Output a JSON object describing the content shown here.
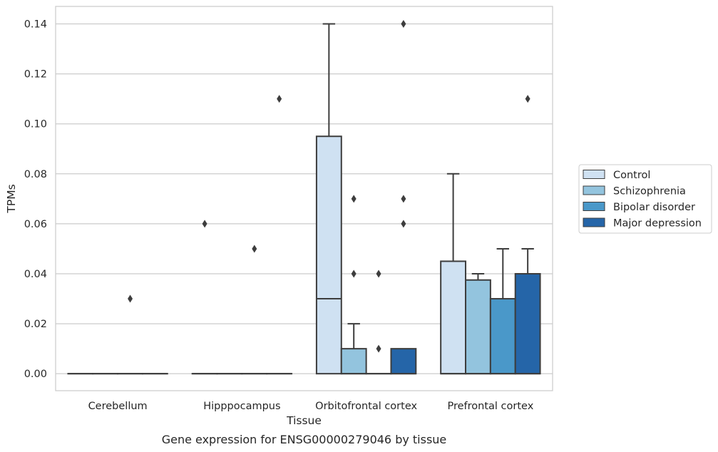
{
  "chart_data": {
    "type": "box",
    "xlabel": "Tissue",
    "ylabel": "TPMs",
    "caption": "Gene expression for ENSG00000279046 by tissue",
    "ylim": [
      -0.0068,
      0.147
    ],
    "yticks": [
      0.0,
      0.02,
      0.04,
      0.06,
      0.08,
      0.1,
      0.12,
      0.14
    ],
    "ytick_labels": [
      "0.00",
      "0.02",
      "0.04",
      "0.06",
      "0.08",
      "0.10",
      "0.12",
      "0.14"
    ],
    "grid": true,
    "legend_position": "right",
    "categories": [
      "Cerebellum",
      "Hipppocampus",
      "Orbitofrontal cortex",
      "Prefrontal cortex"
    ],
    "series": [
      {
        "name": "Control",
        "color": "#cfe1f2",
        "boxes": [
          {
            "q1": 0,
            "median": 0,
            "q3": 0,
            "whisker_low": 0,
            "whisker_high": 0,
            "outliers": []
          },
          {
            "q1": 0,
            "median": 0,
            "q3": 0,
            "whisker_low": 0,
            "whisker_high": 0,
            "outliers": [
              0.06
            ]
          },
          {
            "q1": 0,
            "median": 0.03,
            "q3": 0.095,
            "whisker_low": 0,
            "whisker_high": 0.14,
            "outliers": []
          },
          {
            "q1": 0,
            "median": 0,
            "q3": 0.045,
            "whisker_low": 0,
            "whisker_high": 0.08,
            "outliers": []
          }
        ]
      },
      {
        "name": "Schizophrenia",
        "color": "#93c4de",
        "boxes": [
          {
            "q1": 0,
            "median": 0,
            "q3": 0,
            "whisker_low": 0,
            "whisker_high": 0,
            "outliers": []
          },
          {
            "q1": 0,
            "median": 0,
            "q3": 0,
            "whisker_low": 0,
            "whisker_high": 0,
            "outliers": []
          },
          {
            "q1": 0,
            "median": 0,
            "q3": 0.01,
            "whisker_low": 0,
            "whisker_high": 0.02,
            "outliers": [
              0.04,
              0.07
            ]
          },
          {
            "q1": 0,
            "median": 0,
            "q3": 0.0375,
            "whisker_low": 0,
            "whisker_high": 0.04,
            "outliers": []
          }
        ]
      },
      {
        "name": "Bipolar disorder",
        "color": "#4a98c9",
        "boxes": [
          {
            "q1": 0,
            "median": 0,
            "q3": 0,
            "whisker_low": 0,
            "whisker_high": 0,
            "outliers": [
              0.03
            ]
          },
          {
            "q1": 0,
            "median": 0,
            "q3": 0,
            "whisker_low": 0,
            "whisker_high": 0,
            "outliers": [
              0.05
            ]
          },
          {
            "q1": 0,
            "median": 0,
            "q3": 0,
            "whisker_low": 0,
            "whisker_high": 0,
            "outliers": [
              0.01,
              0.04
            ]
          },
          {
            "q1": 0,
            "median": 0,
            "q3": 0.03,
            "whisker_low": 0,
            "whisker_high": 0.05,
            "outliers": []
          }
        ]
      },
      {
        "name": "Major depression",
        "color": "#2565a8",
        "boxes": [
          {
            "q1": 0,
            "median": 0,
            "q3": 0,
            "whisker_low": 0,
            "whisker_high": 0,
            "outliers": []
          },
          {
            "q1": 0,
            "median": 0,
            "q3": 0,
            "whisker_low": 0,
            "whisker_high": 0,
            "outliers": [
              0.11
            ]
          },
          {
            "q1": 0,
            "median": 0,
            "q3": 0.01,
            "whisker_low": 0,
            "whisker_high": 0.01,
            "outliers": [
              0.06,
              0.07,
              0.14
            ]
          },
          {
            "q1": 0,
            "median": 0,
            "q3": 0.04,
            "whisker_low": 0,
            "whisker_high": 0.05,
            "outliers": [
              0.11
            ]
          }
        ]
      }
    ]
  }
}
